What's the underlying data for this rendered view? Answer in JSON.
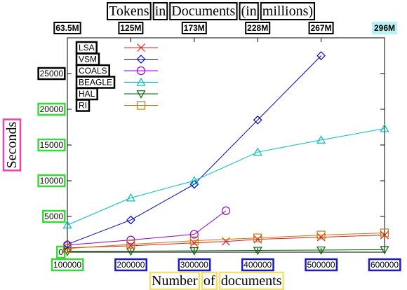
{
  "chart_data": {
    "type": "line",
    "title_words": [
      "Tokens",
      "in",
      "Documents",
      "(in",
      "millions)"
    ],
    "xlabel_words": [
      "Number",
      "of",
      "documents"
    ],
    "ylabel": "Seconds",
    "x_ticks": [
      "100000",
      "200000",
      "300000",
      "400000",
      "500000",
      "600000"
    ],
    "x_tick_values": [
      100000,
      200000,
      300000,
      400000,
      500000,
      600000
    ],
    "y_ticks": [
      "0",
      "5000",
      "10000",
      "15000",
      "20000",
      "25000"
    ],
    "y_tick_values": [
      0,
      5000,
      10000,
      15000,
      20000,
      25000
    ],
    "top_ticks": [
      "63.5M",
      "125M",
      "173M",
      "228M",
      "267M",
      "296M"
    ],
    "xlim": [
      100000,
      600000
    ],
    "ylim": [
      0,
      30000
    ],
    "grid": false,
    "legend_placement": "top-left",
    "series": [
      {
        "name": "LSA",
        "color": "#e41a1c",
        "marker": "x",
        "x": [
          100000,
          200000,
          300000,
          350000,
          400000,
          500000,
          600000
        ],
        "y": [
          600,
          900,
          1300,
          1500,
          1800,
          2100,
          2400
        ]
      },
      {
        "name": "VSM",
        "color": "#0000cc",
        "marker": "diamond",
        "x": [
          100000,
          200000,
          300000,
          400000,
          500000
        ],
        "y": [
          1100,
          4500,
          9500,
          18500,
          27500
        ]
      },
      {
        "name": "COALS",
        "color": "#9400d3",
        "marker": "circle",
        "x": [
          100000,
          200000,
          300000,
          350000
        ],
        "y": [
          1000,
          1700,
          2500,
          5800
        ]
      },
      {
        "name": "BEAGLE",
        "color": "#00bfbf",
        "marker": "triangle-up",
        "x": [
          100000,
          200000,
          300000,
          400000,
          500000,
          600000
        ],
        "y": [
          3800,
          7600,
          10000,
          14000,
          15700,
          17300
        ]
      },
      {
        "name": "HAL",
        "color": "#006400",
        "marker": "triangle-down",
        "x": [
          100000,
          200000,
          300000,
          400000,
          500000,
          600000
        ],
        "y": [
          100,
          150,
          200,
          250,
          300,
          350
        ]
      },
      {
        "name": "RI",
        "color": "#cc7a00",
        "marker": "square",
        "x": [
          100000,
          200000,
          300000,
          400000,
          500000,
          600000
        ],
        "y": [
          500,
          1100,
          1600,
          2000,
          2400,
          2700
        ]
      }
    ]
  }
}
